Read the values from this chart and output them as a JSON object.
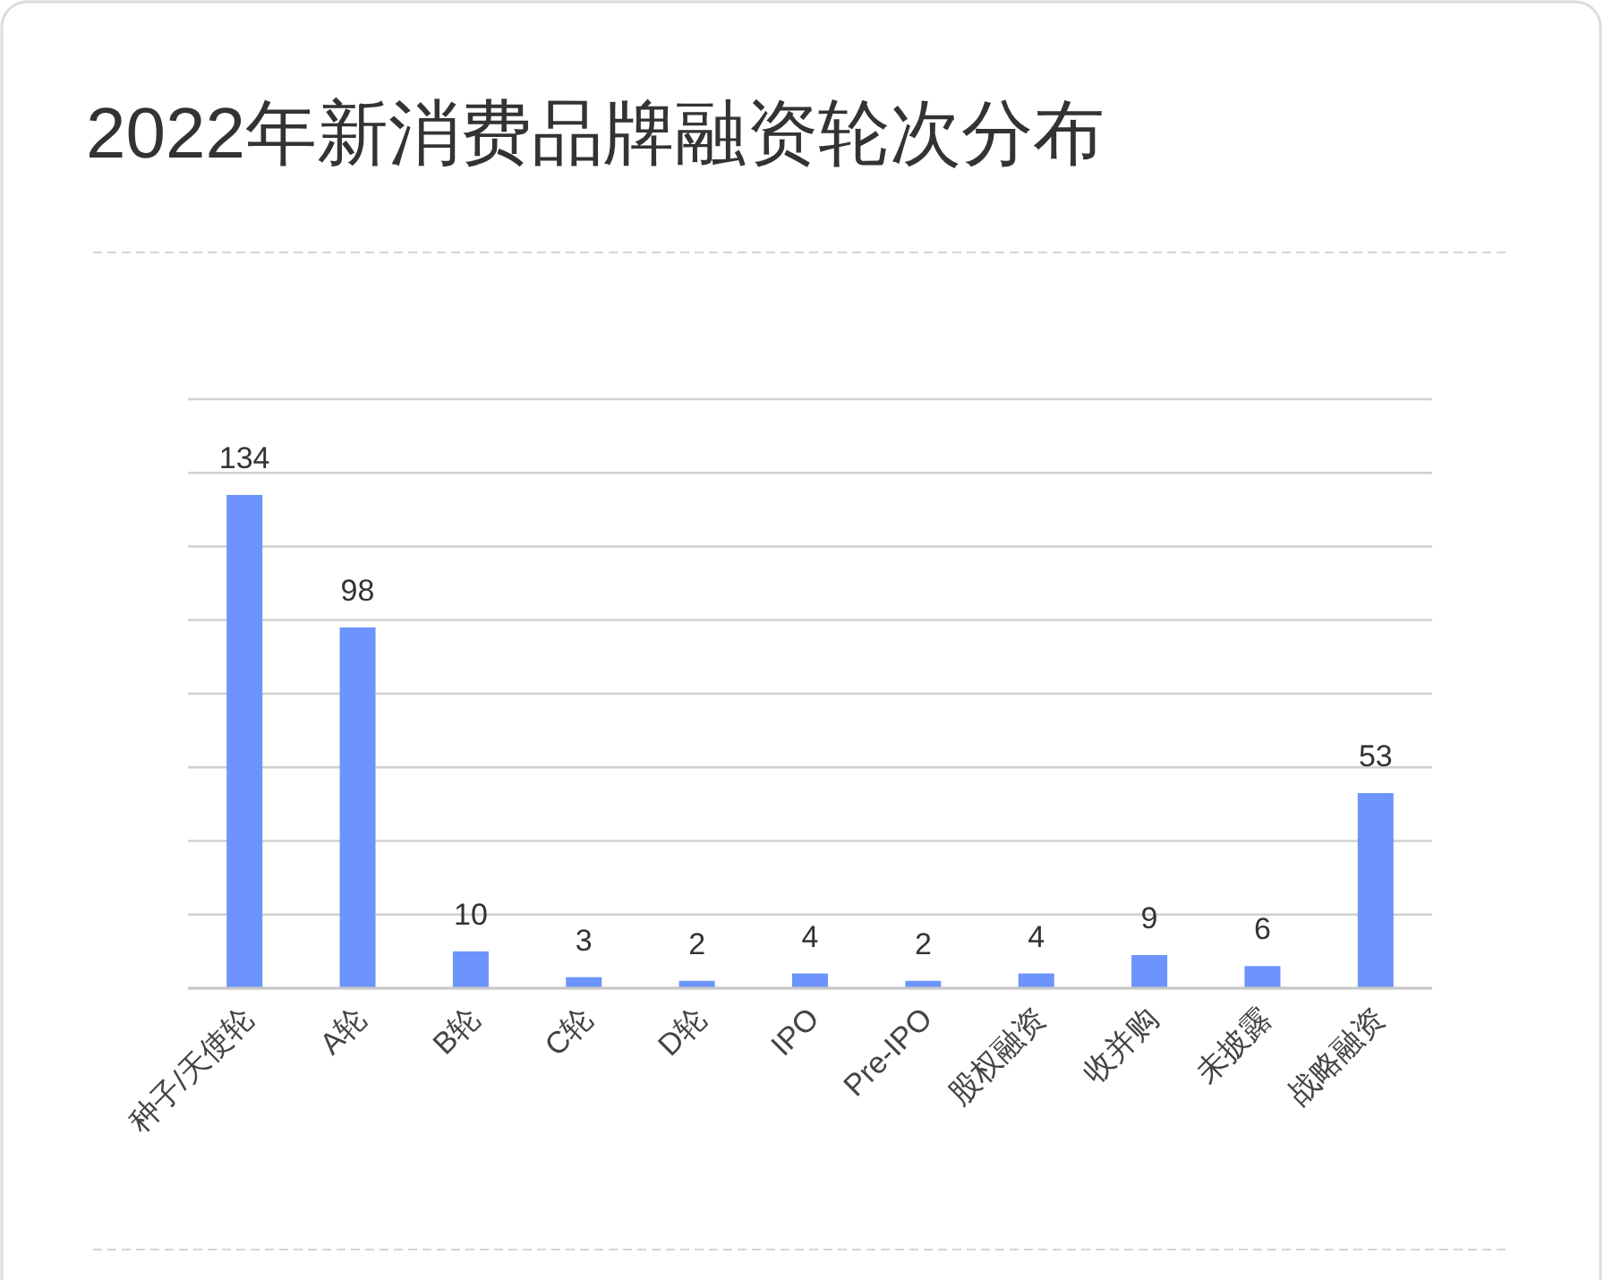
{
  "chart_data": {
    "type": "bar",
    "title": "2022年新消费品牌融资轮次分布",
    "categories": [
      "种子/天使轮",
      "A轮",
      "B轮",
      "C轮",
      "D轮",
      "IPO",
      "Pre-IPO",
      "股权融资",
      "收并购",
      "未披露",
      "战略融资"
    ],
    "values": [
      134,
      98,
      10,
      3,
      2,
      4,
      2,
      4,
      9,
      6,
      53
    ],
    "color": "#6d94fc",
    "ylim": [
      0,
      160
    ],
    "yticks": [
      0,
      20,
      40,
      60,
      80,
      100,
      120,
      140,
      160
    ],
    "grid": "y",
    "data_labels": true,
    "tick_labels": "x"
  }
}
